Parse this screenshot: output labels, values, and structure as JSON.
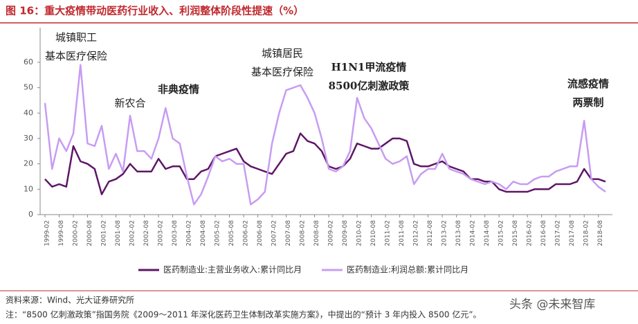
{
  "chart_data": {
    "type": "line",
    "title": "图 16：重大疫情带动医药行业收入、利润整体阶段性提速（%）",
    "categories": [
      "1999-02",
      null,
      "1999-08",
      null,
      "2000-02",
      null,
      "2000-08",
      null,
      "2001-02",
      null,
      "2001-08",
      null,
      "2002-02",
      null,
      "2002-08",
      null,
      "2003-02",
      null,
      "2003-08",
      null,
      "2004-02",
      null,
      "2004-08",
      null,
      "2005-02",
      null,
      "2005-08",
      null,
      "2006-02",
      null,
      "2006-08",
      null,
      "2007-02",
      null,
      "2007-08",
      null,
      "2008-02",
      null,
      "2008-08",
      null,
      "2009-02",
      null,
      "2009-08",
      null,
      "2010-02",
      null,
      "2010-08",
      null,
      "2011-02",
      null,
      "2011-08",
      null,
      "2012-02",
      null,
      "2012-08",
      null,
      "2013-02",
      null,
      "2013-08",
      null,
      "2014-02",
      null,
      "2014-08",
      null,
      "2015-02",
      null,
      "2015-08",
      null,
      "2016-02",
      null,
      "2016-08",
      null,
      "2017-02",
      null,
      "2017-08",
      null,
      "2018-02",
      null,
      "2018-08",
      null
    ],
    "series": [
      {
        "name": "医药制造业:主营业务收入:累计同比月",
        "color": "#5e1566",
        "values": [
          14,
          11,
          12,
          11,
          27,
          21,
          20,
          18,
          8,
          13,
          14,
          16,
          20,
          17,
          17,
          17,
          22,
          18,
          19,
          19,
          14,
          14,
          17,
          18,
          23,
          24,
          25,
          26,
          21,
          19,
          18,
          17,
          16,
          20,
          24,
          25,
          32,
          29,
          28,
          25,
          19,
          18,
          19,
          22,
          28,
          27,
          26,
          26,
          28,
          30,
          30,
          29,
          20,
          19,
          19,
          20,
          21,
          19,
          18,
          17,
          14,
          14,
          13,
          13,
          10,
          9,
          9,
          9,
          9,
          10,
          10,
          10,
          12,
          12,
          12,
          13,
          18,
          14,
          14,
          13
        ]
      },
      {
        "name": "医药制造业:利润总额:累计同比月",
        "color": "#c79cf2",
        "values": [
          44,
          18,
          30,
          25,
          32,
          59,
          28,
          27,
          35,
          18,
          24,
          17,
          39,
          25,
          25,
          22,
          30,
          42,
          30,
          28,
          15,
          4,
          8,
          15,
          23,
          21,
          22,
          20,
          20,
          4,
          6,
          9,
          28,
          40,
          49,
          50,
          51,
          46,
          40,
          30,
          18,
          17,
          19,
          25,
          46,
          38,
          34,
          28,
          22,
          20,
          21,
          23,
          12,
          16,
          18,
          18,
          24,
          18,
          17,
          16,
          14,
          13,
          12,
          13,
          12,
          10,
          13,
          12,
          12,
          14,
          15,
          15,
          17,
          18,
          19,
          19,
          37,
          14,
          11,
          9
        ]
      }
    ],
    "ylim": [
      0,
      60
    ],
    "yticks": [
      0,
      10,
      20,
      30,
      40,
      50,
      60
    ],
    "annotations": [
      {
        "lines": [
          "城镇职工",
          "基本医疗保险"
        ]
      },
      {
        "lines": [
          "新农合"
        ]
      },
      {
        "lines": [
          "非典疫情"
        ]
      },
      {
        "lines": [
          "城镇居民",
          "基本医疗保险"
        ]
      },
      {
        "lines": [
          "H1N1甲流疫情",
          "8500亿刺激政策"
        ]
      },
      {
        "lines": [
          "流感疫情",
          "两票制"
        ]
      }
    ],
    "source": "资料来源：Wind、光大证券研究所",
    "note": "注：“8500 亿刺激政策”指国务院《2009～2011 年深化医药卫生体制改革实施方案》，中提出的“预计 3 年内投入 8500 亿元”。",
    "watermark": "头条 @未来智库"
  }
}
